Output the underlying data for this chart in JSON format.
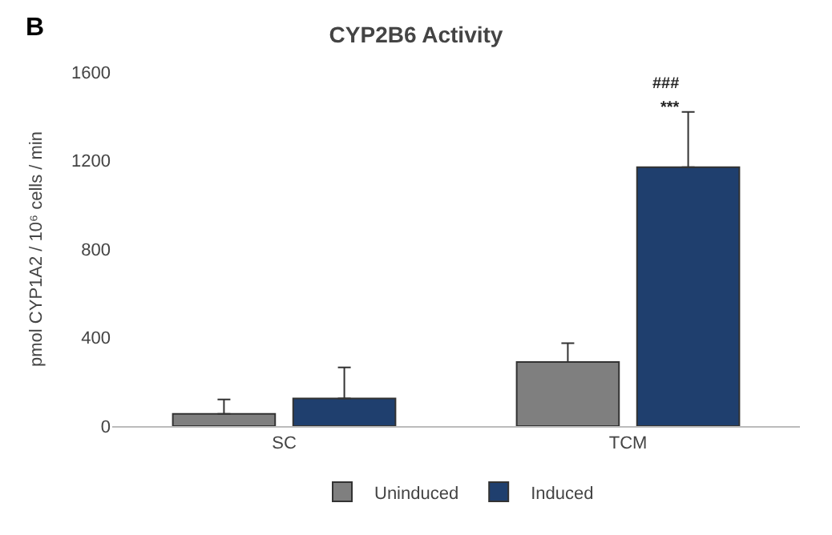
{
  "chart_data": {
    "type": "bar",
    "title": "CYP2B6 Activity",
    "ylabel": "pmol CYP1A2 / 10⁶ cells / min",
    "categories": [
      "SC",
      "TCM"
    ],
    "series": [
      {
        "name": "Uninduced",
        "color": "#7f7f7f",
        "values": [
          55,
          290
        ],
        "errors": [
          [
            55,
            120
          ],
          [
            290,
            375
          ]
        ]
      },
      {
        "name": "Induced",
        "color": "#1f3f6e",
        "values": [
          125,
          1170
        ],
        "errors": [
          [
            125,
            265
          ],
          [
            1170,
            1420
          ]
        ]
      }
    ],
    "ylim": [
      0,
      1600
    ],
    "yticks": [
      0,
      400,
      800,
      1200,
      1600
    ],
    "legend": "bottom",
    "annotations": [
      "B",
      "***",
      "###"
    ]
  }
}
